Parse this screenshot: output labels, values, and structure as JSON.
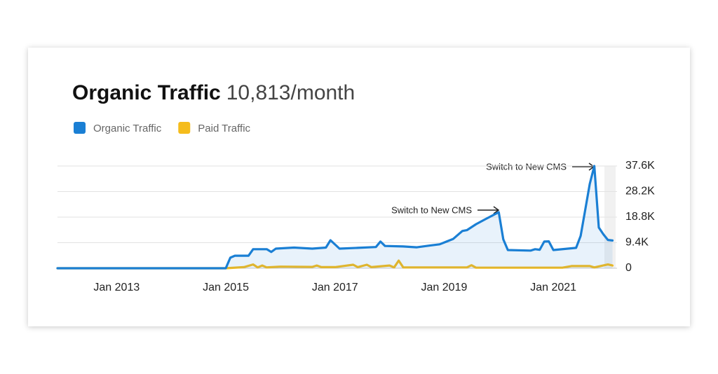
{
  "chart_data": {
    "type": "line",
    "title": "Organic Traffic",
    "subtitle": "10,813/month",
    "annotations": [
      "Switch to New CMS",
      "Switch to New CMS"
    ],
    "xlim": [
      "2011-12",
      "2022-03"
    ],
    "xticks": [
      {
        "value": "2013-01",
        "label": "Jan 2013"
      },
      {
        "value": "2015-01",
        "label": "Jan 2015"
      },
      {
        "value": "2017-01",
        "label": "Jan 2017"
      },
      {
        "value": "2019-01",
        "label": "Jan 2019"
      },
      {
        "value": "2021-01",
        "label": "Jan 2021"
      }
    ],
    "ylim": [
      0,
      37600
    ],
    "yticks": [
      0,
      {
        "value": 9400,
        "label": "9.4K"
      },
      {
        "value": 18800,
        "label": "18.8K"
      },
      {
        "value": 28200,
        "label": "28.2K"
      },
      {
        "value": 37600,
        "label": "37.6K"
      }
    ],
    "grid": true,
    "series": [
      {
        "name": "Organic Traffic",
        "color": "#1a7fd4",
        "fill": true,
        "x": [
          "2011-12",
          "2015-01",
          "2015-02",
          "2015-03",
          "2015-06",
          "2015-07",
          "2015-10",
          "2015-11",
          "2015-12",
          "2016-04",
          "2016-08",
          "2016-11",
          "2016-12",
          "2017-02",
          "2017-06",
          "2017-10",
          "2017-11",
          "2017-12",
          "2018-04",
          "2018-07",
          "2018-10",
          "2018-12",
          "2019-03",
          "2019-05",
          "2019-06",
          "2019-08",
          "2019-10",
          "2020-01",
          "2020-02",
          "2020-03",
          "2020-08",
          "2020-09",
          "2020-10",
          "2020-11",
          "2020-12",
          "2021-01",
          "2021-06",
          "2021-07",
          "2021-08",
          "2021-09",
          "2021-10",
          "2021-11",
          "2021-12",
          "2022-01",
          "2022-02"
        ],
        "values": [
          0,
          0,
          3900,
          4600,
          4600,
          7000,
          7000,
          6000,
          7200,
          7600,
          7200,
          7600,
          10300,
          7200,
          7500,
          7800,
          9800,
          8200,
          8000,
          7700,
          8400,
          8800,
          10800,
          13700,
          14000,
          16200,
          18000,
          20600,
          10600,
          6700,
          6500,
          7000,
          6800,
          9800,
          9900,
          6700,
          7500,
          11900,
          21400,
          31000,
          37600,
          15000,
          12500,
          10400,
          10200
        ]
      },
      {
        "name": "Paid Traffic",
        "color": "#f5bc1c",
        "fill": false,
        "x": [
          "2011-12",
          "2015-01",
          "2015-05",
          "2015-07",
          "2015-08",
          "2015-09",
          "2015-10",
          "2016-01",
          "2016-08",
          "2016-09",
          "2016-10",
          "2017-01",
          "2017-05",
          "2017-06",
          "2017-08",
          "2017-09",
          "2018-01",
          "2018-02",
          "2018-03",
          "2018-04",
          "2019-06",
          "2019-07",
          "2019-08",
          "2021-03",
          "2021-05",
          "2021-09",
          "2021-10",
          "2022-01",
          "2022-02"
        ],
        "values": [
          0,
          0,
          400,
          1400,
          300,
          1000,
          300,
          600,
          500,
          1000,
          400,
          400,
          1300,
          400,
          1300,
          400,
          1000,
          300,
          2800,
          300,
          300,
          1100,
          200,
          200,
          800,
          800,
          300,
          1400,
          1000
        ]
      }
    ]
  }
}
